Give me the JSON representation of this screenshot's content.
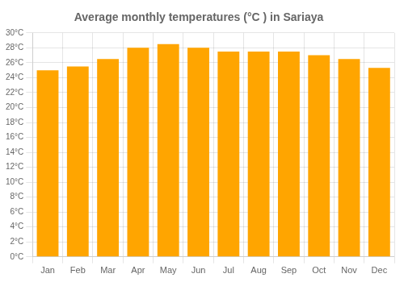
{
  "chart_data": {
    "type": "bar",
    "title": "Average monthly temperatures (°C ) in Sariaya",
    "categories": [
      "Jan",
      "Feb",
      "Mar",
      "Apr",
      "May",
      "Jun",
      "Jul",
      "Aug",
      "Sep",
      "Oct",
      "Nov",
      "Dec"
    ],
    "values": [
      25.0,
      25.5,
      26.5,
      28.0,
      28.5,
      28.0,
      27.5,
      27.5,
      27.5,
      27.0,
      26.5,
      25.3
    ],
    "color": "#FFA500",
    "ylim": [
      0,
      30
    ],
    "yticks": [
      {
        "value": 0,
        "label": "0°C"
      },
      {
        "value": 2,
        "label": "2°C"
      },
      {
        "value": 4,
        "label": "4°C"
      },
      {
        "value": 6,
        "label": "6°C"
      },
      {
        "value": 8,
        "label": "8°C"
      },
      {
        "value": 10,
        "label": "10°C"
      },
      {
        "value": 12,
        "label": "12°C"
      },
      {
        "value": 14,
        "label": "14°C"
      },
      {
        "value": 16,
        "label": "16°C"
      },
      {
        "value": 18,
        "label": "18°C"
      },
      {
        "value": 20,
        "label": "20°C"
      },
      {
        "value": 22,
        "label": "22°C"
      },
      {
        "value": 24,
        "label": "24°C"
      },
      {
        "value": 26,
        "label": "26°C"
      },
      {
        "value": 28,
        "label": "28°C"
      },
      {
        "value": 30,
        "label": "30°C"
      }
    ],
    "grid": true
  }
}
